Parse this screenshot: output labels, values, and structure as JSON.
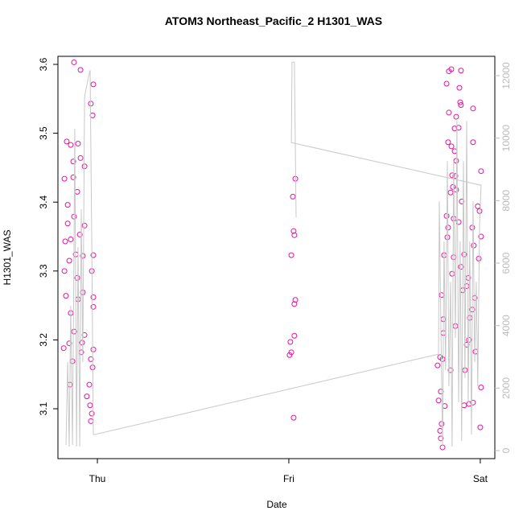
{
  "chart_data": {
    "type": "scatter",
    "title": "ATOM3 Northeast_Pacific_2 H1301_WAS",
    "xlabel": "Date",
    "ylabel": "H1301_WAS",
    "xlim": [
      -0.206,
      2.076
    ],
    "ylim": [
      3.0276,
      3.6117
    ],
    "y2lim": [
      -257,
      12618
    ],
    "xticks": [
      {
        "value": 0,
        "label": "Thu"
      },
      {
        "value": 1,
        "label": "Fri"
      },
      {
        "value": 2,
        "label": "Sat"
      }
    ],
    "yticks": [
      3.1,
      3.2,
      3.3,
      3.4,
      3.5,
      3.6
    ],
    "y2ticks": [
      0,
      2000,
      4000,
      6000,
      8000,
      10000,
      12000
    ],
    "series": [
      {
        "type": "scatter",
        "color": "#e6139c",
        "x": [
          -0.122,
          -0.088,
          -0.034,
          -0.021,
          -0.025,
          -0.16,
          -0.139,
          -0.101,
          -0.088,
          -0.126,
          -0.067,
          -0.172,
          -0.126,
          -0.155,
          -0.105,
          -0.155,
          -0.122,
          -0.092,
          -0.168,
          -0.139,
          -0.067,
          -0.076,
          -0.021,
          -0.147,
          -0.113,
          -0.105,
          -0.172,
          -0.029,
          -0.076,
          -0.164,
          -0.021,
          -0.139,
          -0.101,
          -0.021,
          -0.122,
          -0.067,
          -0.147,
          -0.08,
          -0.176,
          -0.021,
          -0.084,
          -0.13,
          -0.034,
          -0.025,
          -0.143,
          -0.042,
          -0.055,
          -0.038,
          -0.029,
          -0.034,
          1.034,
          1.021,
          1.025,
          1.029,
          1.013,
          1.034,
          1.029,
          1.029,
          1.008,
          1.013,
          1.004,
          1.025,
          1.849,
          1.836,
          1.899,
          1.824,
          1.891,
          1.895,
          1.899,
          1.836,
          1.874,
          1.962,
          1.866,
          1.887,
          1.832,
          1.849,
          1.962,
          1.866,
          1.874,
          2.004,
          1.853,
          1.87,
          1.857,
          1.874,
          1.845,
          1.903,
          1.987,
          1.996,
          1.824,
          1.861,
          1.887,
          1.832,
          1.958,
          1.828,
          2.004,
          1.966,
          1.916,
          1.811,
          1.861,
          1.992,
          1.899,
          1.853,
          1.937,
          1.929,
          1.798,
          1.908,
          1.971,
          1.958,
          1.807,
          1.945,
          1.87,
          1.807,
          1.941,
          1.929,
          1.975,
          1.79,
          1.803,
          1.777,
          1.845,
          1.92,
          1.794,
          2.004,
          1.782,
          1.815,
          1.916,
          1.941,
          1.962,
          1.798,
          1.79,
          1.794,
          1.803,
          2.0
        ],
        "values": [
          3.603,
          3.592,
          3.543,
          3.571,
          3.526,
          3.488,
          3.483,
          3.485,
          3.464,
          3.459,
          3.452,
          3.434,
          3.436,
          3.396,
          3.415,
          3.369,
          3.379,
          3.353,
          3.343,
          3.346,
          3.366,
          3.322,
          3.323,
          3.315,
          3.324,
          3.29,
          3.3,
          3.3,
          3.269,
          3.264,
          3.262,
          3.239,
          3.259,
          3.248,
          3.212,
          3.207,
          3.195,
          3.196,
          3.188,
          3.186,
          3.182,
          3.169,
          3.172,
          3.16,
          3.135,
          3.135,
          3.118,
          3.105,
          3.093,
          3.082,
          3.434,
          3.408,
          3.358,
          3.352,
          3.323,
          3.258,
          3.252,
          3.206,
          3.197,
          3.182,
          3.178,
          3.087,
          3.593,
          3.59,
          3.591,
          3.572,
          3.566,
          3.545,
          3.541,
          3.53,
          3.524,
          3.536,
          3.507,
          3.508,
          3.487,
          3.481,
          3.487,
          3.474,
          3.46,
          3.445,
          3.439,
          3.438,
          3.422,
          3.418,
          3.414,
          3.401,
          3.394,
          3.387,
          3.38,
          3.376,
          3.371,
          3.363,
          3.363,
          3.349,
          3.35,
          3.337,
          3.324,
          3.323,
          3.32,
          3.318,
          3.306,
          3.296,
          3.29,
          3.278,
          3.265,
          3.272,
          3.261,
          3.244,
          3.23,
          3.232,
          3.22,
          3.21,
          3.2,
          3.193,
          3.183,
          3.175,
          3.172,
          3.163,
          3.156,
          3.156,
          3.125,
          3.131,
          3.112,
          3.104,
          3.105,
          3.107,
          3.109,
          3.078,
          3.068,
          3.057,
          3.044,
          3.073
        ]
      },
      {
        "type": "line",
        "axis": "y2",
        "color": "#c8c8c8",
        "x": [
          -0.164,
          -0.155,
          -0.147,
          -0.139,
          -0.13,
          -0.122,
          -0.118,
          -0.109,
          -0.101,
          -0.092,
          -0.084,
          -0.076,
          -0.067,
          -0.059,
          -0.046,
          -0.038,
          -0.029,
          -0.021,
          -0.013,
          1.782,
          1.786,
          1.794,
          1.803,
          1.811,
          1.819,
          1.828,
          1.836,
          1.845,
          1.853,
          1.861,
          1.87,
          1.878,
          1.887,
          1.895,
          1.903,
          1.912,
          1.92,
          1.929,
          1.937,
          1.945,
          1.954,
          1.962,
          1.971,
          1.979,
          1.987,
          1.996,
          2.004,
          1.013,
          1.017,
          1.029,
          1.038
        ],
        "values": [
          180,
          2831,
          129,
          4633,
          180,
          6512,
          10296,
          129,
          6512,
          129,
          7722,
          2831,
          11326,
          11583,
          11969,
          12175,
          6512,
          515,
          515,
          3089,
          7979,
          4118,
          129,
          6692,
          2574,
          9266,
          2059,
          5405,
          129,
          9266,
          3604,
          10553,
          1544,
          6692,
          309,
          9266,
          2317,
          10553,
          1544,
          6692,
          515,
          7979,
          2831,
          5405,
          2059,
          7207,
          8494,
          9858,
          12432,
          12432,
          7465
        ]
      }
    ]
  }
}
